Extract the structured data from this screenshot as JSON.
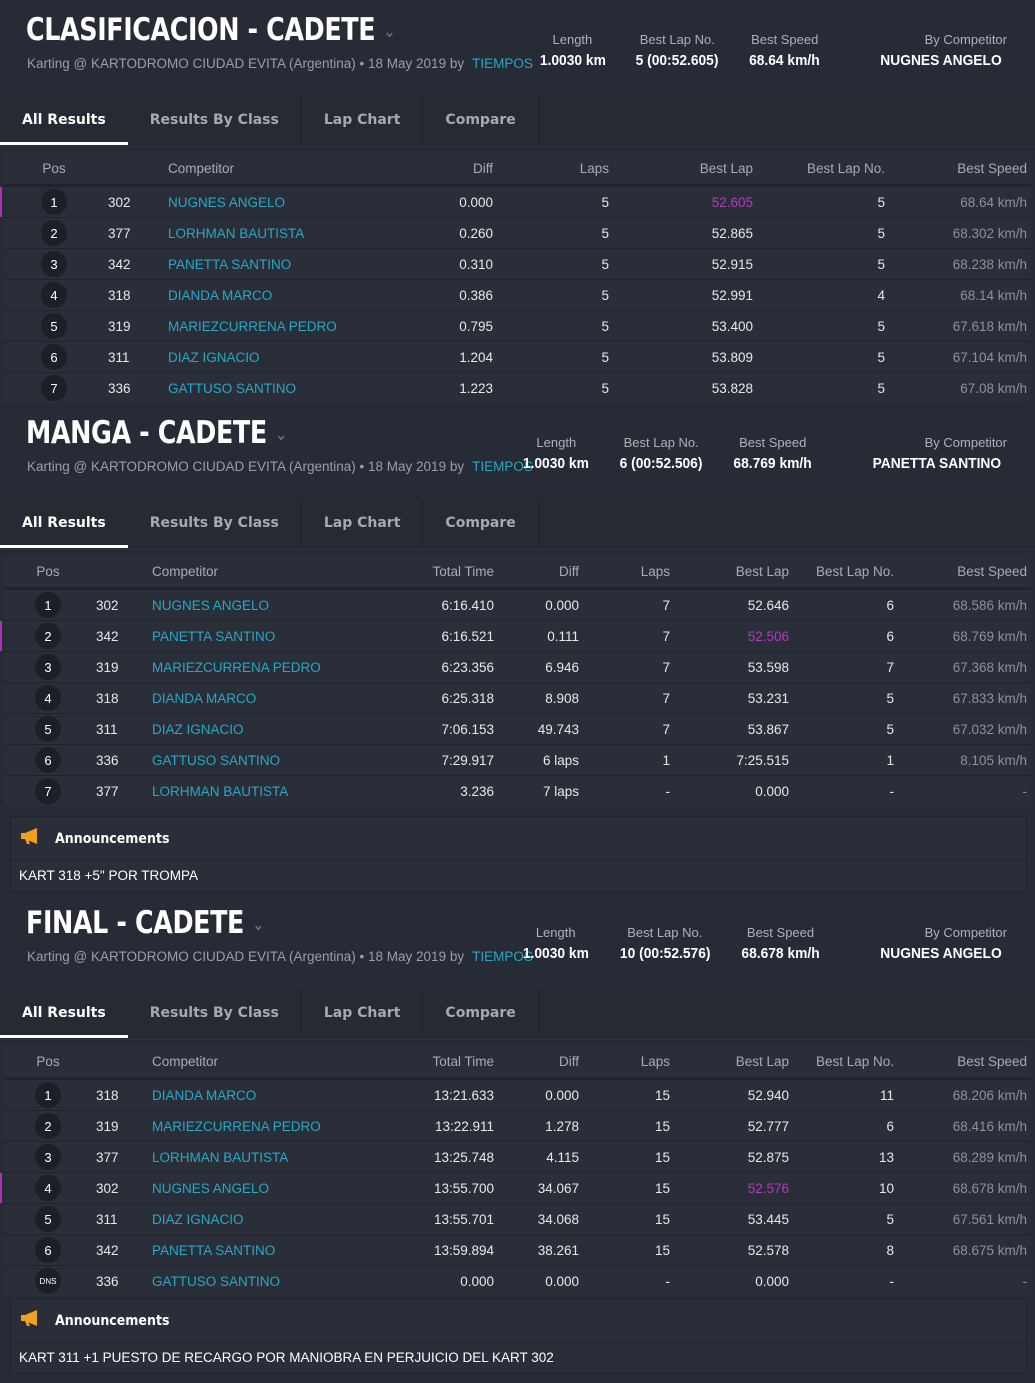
{
  "tabs": [
    "All Results",
    "Results By Class",
    "Lap Chart",
    "Compare"
  ],
  "stat_labels": {
    "length": "Length",
    "best_lap_no": "Best Lap No.",
    "best_speed": "Best Speed",
    "by_competitor": "By Competitor"
  },
  "announcements_label": "Announcements",
  "colors": {
    "accent": "#27a8c6",
    "best_lap": "#b23bc0",
    "background": "#272b35",
    "megaphone": "#f0a020"
  },
  "sessions": [
    {
      "title": "CLASIFICACION - CADETE",
      "subtitle": "Karting @ KARTODROMO CIUDAD EVITA (Argentina) • 18 May 2019 by",
      "by_link": "TIEMPOS",
      "length": "1.0030 km",
      "best_lap_no": "5 (00:52.605)",
      "best_speed": "68.64 km/h",
      "by_competitor": "NUGNES ANGELO",
      "columns": [
        "Pos",
        "",
        "Competitor",
        "Diff",
        "Laps",
        "Best Lap",
        "Best Lap No.",
        "Best Speed"
      ],
      "rows": [
        {
          "pos": "1",
          "no": "302",
          "name": "NUGNES ANGELO",
          "diff": "0.000",
          "laps": "5",
          "best_lap": "52.605",
          "best_lap_no": "5",
          "best_speed": "68.64 km/h",
          "fastest": true
        },
        {
          "pos": "2",
          "no": "377",
          "name": "LORHMAN BAUTISTA",
          "diff": "0.260",
          "laps": "5",
          "best_lap": "52.865",
          "best_lap_no": "5",
          "best_speed": "68.302 km/h"
        },
        {
          "pos": "3",
          "no": "342",
          "name": "PANETTA SANTINO",
          "diff": "0.310",
          "laps": "5",
          "best_lap": "52.915",
          "best_lap_no": "5",
          "best_speed": "68.238 km/h"
        },
        {
          "pos": "4",
          "no": "318",
          "name": "DIANDA MARCO",
          "diff": "0.386",
          "laps": "5",
          "best_lap": "52.991",
          "best_lap_no": "4",
          "best_speed": "68.14 km/h"
        },
        {
          "pos": "5",
          "no": "319",
          "name": "MARIEZCURRENA PEDRO",
          "diff": "0.795",
          "laps": "5",
          "best_lap": "53.400",
          "best_lap_no": "5",
          "best_speed": "67.618 km/h"
        },
        {
          "pos": "6",
          "no": "311",
          "name": "DIAZ IGNACIO",
          "diff": "1.204",
          "laps": "5",
          "best_lap": "53.809",
          "best_lap_no": "5",
          "best_speed": "67.104 km/h"
        },
        {
          "pos": "7",
          "no": "336",
          "name": "GATTUSO SANTINO",
          "diff": "1.223",
          "laps": "5",
          "best_lap": "53.828",
          "best_lap_no": "5",
          "best_speed": "67.08 km/h"
        }
      ]
    },
    {
      "title": "MANGA - CADETE",
      "subtitle": "Karting @ KARTODROMO CIUDAD EVITA (Argentina) • 18 May 2019 by",
      "by_link": "TIEMPOS",
      "length": "1.0030 km",
      "best_lap_no": "6 (00:52.506)",
      "best_speed": "68.769 km/h",
      "by_competitor": "PANETTA SANTINO",
      "columns": [
        "Pos",
        "",
        "Competitor",
        "Total Time",
        "Diff",
        "Laps",
        "Best Lap",
        "Best Lap No.",
        "Best Speed"
      ],
      "rows": [
        {
          "pos": "1",
          "no": "302",
          "name": "NUGNES ANGELO",
          "total": "6:16.410",
          "diff": "0.000",
          "laps": "7",
          "best_lap": "52.646",
          "best_lap_no": "6",
          "best_speed": "68.586 km/h"
        },
        {
          "pos": "2",
          "no": "342",
          "name": "PANETTA SANTINO",
          "total": "6:16.521",
          "diff": "0.111",
          "laps": "7",
          "best_lap": "52.506",
          "best_lap_no": "6",
          "best_speed": "68.769 km/h",
          "fastest": true
        },
        {
          "pos": "3",
          "no": "319",
          "name": "MARIEZCURRENA PEDRO",
          "total": "6:23.356",
          "diff": "6.946",
          "laps": "7",
          "best_lap": "53.598",
          "best_lap_no": "7",
          "best_speed": "67.368 km/h"
        },
        {
          "pos": "4",
          "no": "318",
          "name": "DIANDA MARCO",
          "total": "6:25.318",
          "diff": "8.908",
          "laps": "7",
          "best_lap": "53.231",
          "best_lap_no": "5",
          "best_speed": "67.833 km/h"
        },
        {
          "pos": "5",
          "no": "311",
          "name": "DIAZ IGNACIO",
          "total": "7:06.153",
          "diff": "49.743",
          "laps": "7",
          "best_lap": "53.867",
          "best_lap_no": "5",
          "best_speed": "67.032 km/h"
        },
        {
          "pos": "6",
          "no": "336",
          "name": "GATTUSO SANTINO",
          "total": "7:29.917",
          "diff": "6 laps",
          "laps": "1",
          "best_lap": "7:25.515",
          "best_lap_no": "1",
          "best_speed": "8.105 km/h"
        },
        {
          "pos": "7",
          "no": "377",
          "name": "LORHMAN BAUTISTA",
          "total": "3.236",
          "diff": "7 laps",
          "laps": "-",
          "best_lap": "0.000",
          "best_lap_no": "-",
          "best_speed": "-"
        }
      ],
      "announcement": "KART 318 +5\" POR TROMPA"
    },
    {
      "title": "FINAL - CADETE",
      "subtitle": "Karting @ KARTODROMO CIUDAD EVITA (Argentina) • 18 May 2019 by",
      "by_link": "TIEMPOS",
      "length": "1.0030 km",
      "best_lap_no": "10 (00:52.576)",
      "best_speed": "68.678 km/h",
      "by_competitor": "NUGNES ANGELO",
      "columns": [
        "Pos",
        "",
        "Competitor",
        "Total Time",
        "Diff",
        "Laps",
        "Best Lap",
        "Best Lap No.",
        "Best Speed"
      ],
      "rows": [
        {
          "pos": "1",
          "no": "318",
          "name": "DIANDA MARCO",
          "total": "13:21.633",
          "diff": "0.000",
          "laps": "15",
          "best_lap": "52.940",
          "best_lap_no": "11",
          "best_speed": "68.206 km/h"
        },
        {
          "pos": "2",
          "no": "319",
          "name": "MARIEZCURRENA PEDRO",
          "total": "13:22.911",
          "diff": "1.278",
          "laps": "15",
          "best_lap": "52.777",
          "best_lap_no": "6",
          "best_speed": "68.416 km/h"
        },
        {
          "pos": "3",
          "no": "377",
          "name": "LORHMAN BAUTISTA",
          "total": "13:25.748",
          "diff": "4.115",
          "laps": "15",
          "best_lap": "52.875",
          "best_lap_no": "13",
          "best_speed": "68.289 km/h"
        },
        {
          "pos": "4",
          "no": "302",
          "name": "NUGNES ANGELO",
          "total": "13:55.700",
          "diff": "34.067",
          "laps": "15",
          "best_lap": "52.576",
          "best_lap_no": "10",
          "best_speed": "68.678 km/h",
          "fastest": true
        },
        {
          "pos": "5",
          "no": "311",
          "name": "DIAZ IGNACIO",
          "total": "13:55.701",
          "diff": "34.068",
          "laps": "15",
          "best_lap": "53.445",
          "best_lap_no": "5",
          "best_speed": "67.561 km/h"
        },
        {
          "pos": "6",
          "no": "342",
          "name": "PANETTA SANTINO",
          "total": "13:59.894",
          "diff": "38.261",
          "laps": "15",
          "best_lap": "52.578",
          "best_lap_no": "8",
          "best_speed": "68.675 km/h"
        },
        {
          "pos": "DNS",
          "no": "336",
          "name": "GATTUSO SANTINO",
          "total": "0.000",
          "diff": "0.000",
          "laps": "-",
          "best_lap": "0.000",
          "best_lap_no": "-",
          "best_speed": "-"
        }
      ],
      "announcement": "KART 311 +1 PUESTO DE RECARGO POR MANIOBRA EN PERJUICIO DEL KART 302"
    }
  ]
}
